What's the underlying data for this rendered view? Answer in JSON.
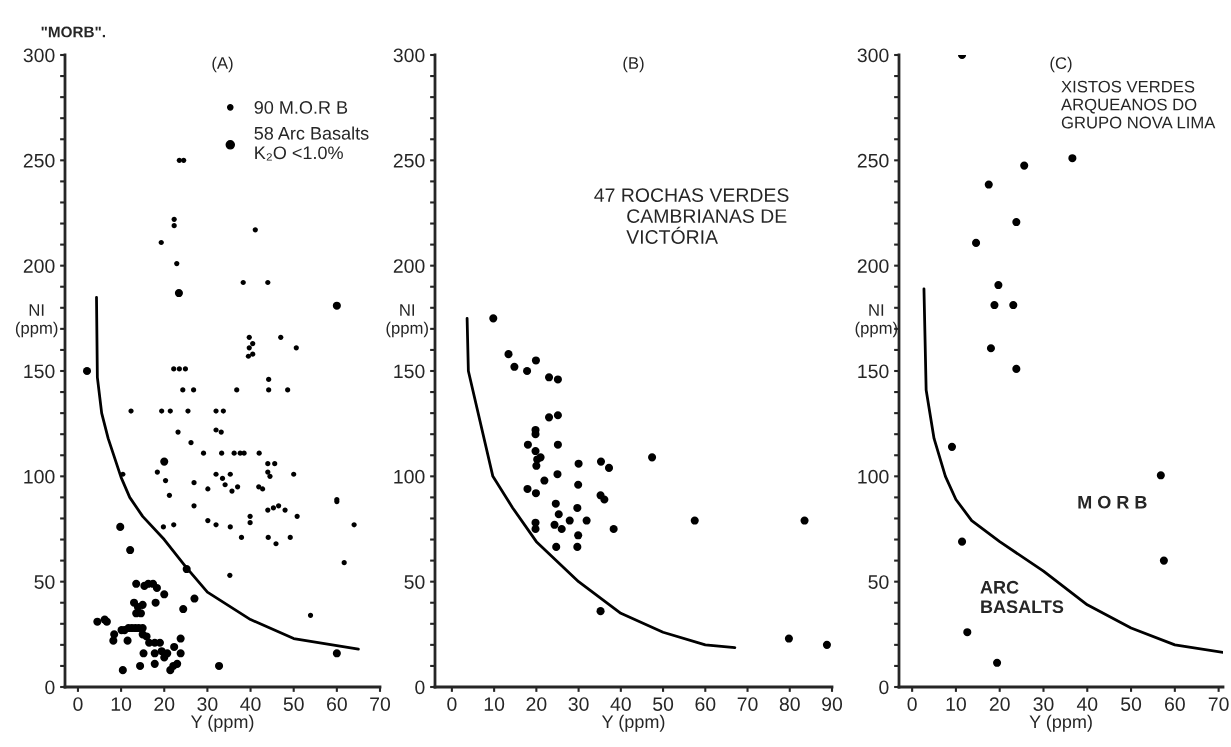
{
  "chart_data": [
    {
      "type": "scatter",
      "title": "(A)",
      "xlabel": "Y (ppm)",
      "ylabel": "NI\n(ppm)",
      "xlim": [
        -3,
        70
      ],
      "ylim": [
        0,
        300
      ],
      "xticks": [
        0,
        10,
        20,
        30,
        40,
        50,
        60,
        70
      ],
      "yticks": [
        0,
        {
          "value": 10,
          "label": null
        },
        {
          "value": 20,
          "label": null
        },
        {
          "value": 30,
          "label": null
        },
        {
          "value": 40,
          "label": null
        },
        50,
        {
          "value": 60,
          "label": null
        },
        {
          "value": 70,
          "label": null
        },
        {
          "value": 80,
          "label": null
        },
        {
          "value": 90,
          "label": null
        },
        100,
        {
          "value": 110,
          "label": null
        },
        {
          "value": 120,
          "label": null
        },
        {
          "value": 130,
          "label": null
        },
        {
          "value": 140,
          "label": null
        },
        150,
        {
          "value": 160,
          "label": null
        },
        {
          "value": 170,
          "label": null
        },
        {
          "value": 180,
          "label": null
        },
        {
          "value": 190,
          "label": null
        },
        200,
        {
          "value": 210,
          "label": null
        },
        {
          "value": 220,
          "label": null
        },
        {
          "value": 230,
          "label": null
        },
        {
          "value": 240,
          "label": null
        },
        250,
        {
          "value": 260,
          "label": null
        },
        {
          "value": 270,
          "label": null
        },
        {
          "value": 280,
          "label": null
        },
        {
          "value": 290,
          "label": null
        },
        300
      ],
      "legend": "top right",
      "annotations": [
        "\"MORB\"."
      ],
      "series": [
        {
          "name": "90 M.O.R B",
          "marker": "circle",
          "color": "#000000",
          "x": [
            23.5,
            24.5,
            22.3,
            22.3,
            19.3,
            22.9,
            41.1,
            38.3,
            44,
            39.7,
            40.5,
            39.7,
            39.5,
            40.5,
            47,
            50.6,
            44.2,
            44.2,
            48.6,
            36.8,
            24.3,
            26.8,
            22.2,
            23.5,
            24.9,
            12.3,
            19.4,
            21.4,
            25.5,
            32,
            33.7,
            23.2,
            32,
            33.2,
            26.2,
            29.1,
            33.3,
            36.2,
            37.6,
            38.5,
            42,
            44,
            45.6,
            18.4,
            20.3,
            21.2,
            26.9,
            30.1,
            32,
            33.5,
            35.3,
            34.1,
            35.7,
            37,
            41.9,
            42.8,
            44,
            44.5,
            50,
            10.4,
            26.9,
            30.1,
            32,
            35.3,
            37.9,
            39.9,
            39.9,
            44,
            45.3,
            46.5,
            48,
            50.8,
            44.1,
            45.9,
            49.2,
            19.8,
            22.2,
            60,
            60,
            64,
            61.7,
            53.9,
            35.2
          ],
          "values": [
            250,
            250,
            222,
            219,
            211,
            201,
            217,
            192,
            192,
            166,
            163,
            161,
            157,
            158,
            166,
            161,
            146,
            141,
            141,
            141,
            141,
            141,
            151,
            151,
            151,
            131,
            131,
            131,
            131,
            131,
            131,
            121,
            122,
            121,
            116,
            111,
            111,
            111,
            111,
            111,
            111,
            106,
            106,
            102,
            98,
            91,
            97,
            94,
            101,
            99,
            101,
            96,
            93,
            95,
            95,
            94,
            102,
            100,
            101,
            101,
            86,
            79,
            77,
            76,
            71,
            81,
            78,
            84,
            85,
            86,
            84,
            81,
            71,
            68,
            71,
            76,
            77,
            89,
            88,
            77,
            59,
            34,
            53
          ]
        },
        {
          "name": "58 Arc Basalts\nK₂O <1.0%",
          "marker": "circle",
          "color": "#000000",
          "x": [
            2.1,
            9.8,
            12.1,
            25.2,
            27,
            24.4,
            32.7,
            60,
            23.4,
            60,
            20,
            4.5,
            6.2,
            6.7,
            8.4,
            8.2,
            10.1,
            10.8,
            11.5,
            11.7,
            12.5,
            13.3,
            14.1,
            15,
            13.5,
            15.4,
            16.3,
            17.4,
            18.3,
            20,
            18,
            13,
            13.9,
            15,
            13.5,
            14.6,
            15,
            15.9,
            16.5,
            17.8,
            15.2,
            10.4,
            14.4,
            17.8,
            17.8,
            19,
            19.4,
            20,
            20.7,
            21.4,
            22.1,
            23,
            23.8,
            22.3,
            23.8
          ],
          "values": [
            150,
            76,
            65,
            56,
            42,
            37,
            10,
            16,
            187,
            181,
            107,
            31,
            32,
            31,
            25,
            22,
            27,
            27,
            22,
            28,
            28,
            28,
            28,
            28,
            49,
            48,
            49,
            49,
            47,
            44,
            40,
            40,
            38,
            39,
            35,
            35,
            25,
            24,
            21,
            21,
            16,
            8,
            10,
            16,
            11,
            21,
            17,
            14,
            16,
            8,
            10,
            11,
            23,
            19,
            16
          ]
        },
        {
          "type": "line",
          "color": "#000000",
          "x": [
            4.3,
            4.5,
            5.5,
            7,
            10,
            12,
            15,
            20,
            25,
            30,
            40,
            50,
            65
          ],
          "values": [
            185,
            147,
            130,
            118,
            99.5,
            90,
            81,
            70,
            57,
            45,
            32,
            23,
            18
          ]
        }
      ]
    },
    {
      "type": "scatter",
      "title": "(B)",
      "xlabel": "Y (ppm)",
      "ylabel": "NI\n(ppm)",
      "xlim": [
        -4,
        90
      ],
      "ylim": [
        0,
        300
      ],
      "xticks": [
        0,
        10,
        20,
        30,
        40,
        50,
        60,
        70,
        80,
        90
      ],
      "yticks": [
        0,
        {
          "value": 10,
          "label": null
        },
        {
          "value": 20,
          "label": null
        },
        {
          "value": 30,
          "label": null
        },
        {
          "value": 40,
          "label": null
        },
        50,
        {
          "value": 60,
          "label": null
        },
        {
          "value": 70,
          "label": null
        },
        {
          "value": 80,
          "label": null
        },
        {
          "value": 90,
          "label": null
        },
        100,
        {
          "value": 110,
          "label": null
        },
        {
          "value": 120,
          "label": null
        },
        {
          "value": 130,
          "label": null
        },
        {
          "value": 140,
          "label": null
        },
        150,
        {
          "value": 160,
          "label": null
        },
        {
          "value": 170,
          "label": null
        },
        {
          "value": 180,
          "label": null
        },
        {
          "value": 190,
          "label": null
        },
        200,
        {
          "value": 210,
          "label": null
        },
        {
          "value": 220,
          "label": null
        },
        {
          "value": 230,
          "label": null
        },
        {
          "value": 240,
          "label": null
        },
        250,
        {
          "value": 260,
          "label": null
        },
        {
          "value": 270,
          "label": null
        },
        {
          "value": 280,
          "label": null
        },
        {
          "value": 290,
          "label": null
        },
        300
      ],
      "annotations": [
        "47 ROCHAS VERDES\n      CAMBRIANAS DE\n      VICTÓRIA"
      ],
      "series": [
        {
          "type": "scatter",
          "marker": "circle",
          "color": "#000000",
          "x": [
            9.8,
            13.4,
            14.8,
            17.8,
            19.9,
            23,
            25.1,
            23,
            25.1,
            19.8,
            19.8,
            18,
            25.1,
            19.8,
            21,
            20.2,
            20,
            21.9,
            17.9,
            19.9,
            25,
            30,
            35.3,
            37.2,
            47.4,
            29.9,
            35.2,
            36.1,
            24.6,
            29.7,
            25.3,
            26,
            24.3,
            27.9,
            31.9,
            38.3,
            19.8,
            19.8,
            24.7,
            29.9,
            29.7,
            57.5,
            83.5,
            35.2,
            79.8,
            88.8
          ],
          "values": [
            175,
            158,
            152,
            150,
            155,
            147,
            146,
            128,
            129,
            122,
            120,
            115,
            115,
            112,
            109,
            108,
            105,
            98,
            94,
            92,
            101,
            106,
            107,
            104,
            109,
            96,
            91,
            89,
            87,
            85,
            82,
            75,
            77,
            79,
            79,
            75,
            78,
            75,
            66.5,
            72,
            66.5,
            79,
            79,
            36,
            23,
            20
          ]
        },
        {
          "type": "line",
          "color": "#000000",
          "x": [
            3.6,
            3.9,
            9.7,
            14.4,
            20,
            30,
            40,
            50,
            60,
            67
          ],
          "values": [
            175,
            150,
            100,
            85,
            69,
            50,
            35,
            26,
            20,
            18.7
          ]
        }
      ]
    },
    {
      "type": "scatter",
      "title": "(C)",
      "xlabel": "Y (ppm)",
      "ylabel": "NI\n(ppm)",
      "xlim": [
        -3,
        71
      ],
      "ylim": [
        0,
        300
      ],
      "xticks": [
        0,
        10,
        20,
        30,
        40,
        50,
        60,
        70
      ],
      "yticks": [
        0,
        {
          "value": 10,
          "label": null
        },
        {
          "value": 20,
          "label": null
        },
        {
          "value": 30,
          "label": null
        },
        {
          "value": 40,
          "label": null
        },
        50,
        {
          "value": 60,
          "label": null
        },
        {
          "value": 70,
          "label": null
        },
        {
          "value": 80,
          "label": null
        },
        {
          "value": 90,
          "label": null
        },
        100,
        {
          "value": 110,
          "label": null
        },
        {
          "value": 120,
          "label": null
        },
        {
          "value": 130,
          "label": null
        },
        {
          "value": 140,
          "label": null
        },
        150,
        {
          "value": 160,
          "label": null
        },
        {
          "value": 170,
          "label": null
        },
        {
          "value": 180,
          "label": null
        },
        {
          "value": 190,
          "label": null
        },
        200,
        {
          "value": 210,
          "label": null
        },
        {
          "value": 220,
          "label": null
        },
        {
          "value": 230,
          "label": null
        },
        {
          "value": 240,
          "label": null
        },
        250,
        {
          "value": 260,
          "label": null
        },
        {
          "value": 270,
          "label": null
        },
        {
          "value": 280,
          "label": null
        },
        {
          "value": 290,
          "label": null
        },
        300
      ],
      "annotations": [
        "XISTOS VERDES\nARQUEANOS DO\nGRUPO NOVA LIMA",
        "M O R B",
        "ARC\nBASALTS"
      ],
      "series": [
        {
          "type": "scatter",
          "marker": "circle",
          "color": "#000000",
          "x": [
            11.4,
            36.6,
            25.6,
            17.5,
            23.8,
            14.6,
            19.7,
            18.8,
            23.1,
            18,
            23.8,
            9.1,
            56.8,
            11.4,
            57.5,
            12.6,
            19.4
          ],
          "values": [
            300,
            251,
            247.5,
            238.5,
            220.7,
            210.8,
            190.8,
            181.3,
            181.3,
            160.8,
            151,
            114,
            100.5,
            69,
            60,
            26,
            11.5
          ]
        },
        {
          "type": "line",
          "color": "#000000",
          "x": [
            2.7,
            3.2,
            5,
            7.6,
            10,
            13.6,
            20,
            30,
            40,
            50,
            60,
            71
          ],
          "values": [
            189,
            141,
            118,
            100,
            89,
            79,
            69,
            55,
            39,
            28,
            20,
            16.4
          ]
        }
      ]
    }
  ]
}
